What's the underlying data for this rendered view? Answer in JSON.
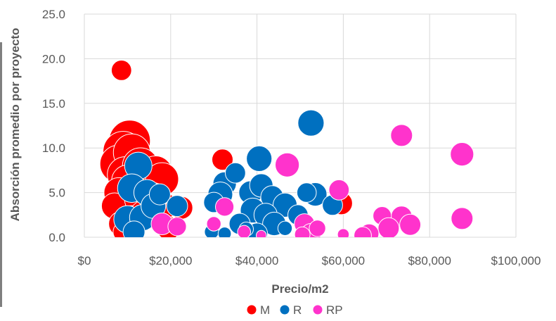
{
  "chart_data": {
    "type": "bubble",
    "xlabel": "Precio/m2",
    "ylabel": "Absorción promedio por proyecto",
    "xlim": [
      0,
      100000
    ],
    "ylim": [
      0,
      25
    ],
    "x_ticks": [
      {
        "value": 0,
        "label": "$0"
      },
      {
        "value": 20000,
        "label": "$20,000"
      },
      {
        "value": 40000,
        "label": "$40,000"
      },
      {
        "value": 60000,
        "label": "$60,000"
      },
      {
        "value": 80000,
        "label": "$80,000"
      },
      {
        "value": 100000,
        "label": "$100,000"
      }
    ],
    "y_ticks": [
      {
        "value": 0,
        "label": "0.0"
      },
      {
        "value": 5,
        "label": "5.0"
      },
      {
        "value": 10,
        "label": "10.0"
      },
      {
        "value": 15,
        "label": "15.0"
      },
      {
        "value": 20,
        "label": "20.0"
      },
      {
        "value": 25,
        "label": "25.0"
      }
    ],
    "grid": true,
    "legend_position": "bottom",
    "series": [
      {
        "name": "M",
        "color": "#ff0000",
        "points": [
          {
            "x": 8600,
            "y": 18.7,
            "size": 1.2
          },
          {
            "x": 10500,
            "y": 10.8,
            "size": 5.0
          },
          {
            "x": 9000,
            "y": 9.6,
            "size": 4.8
          },
          {
            "x": 8000,
            "y": 8.2,
            "size": 4.2
          },
          {
            "x": 11000,
            "y": 9.5,
            "size": 4.0
          },
          {
            "x": 9500,
            "y": 7.0,
            "size": 3.8
          },
          {
            "x": 13000,
            "y": 8.0,
            "size": 3.8
          },
          {
            "x": 15000,
            "y": 6.2,
            "size": 3.5
          },
          {
            "x": 16500,
            "y": 7.2,
            "size": 3.4
          },
          {
            "x": 18000,
            "y": 6.5,
            "size": 3.2
          },
          {
            "x": 10000,
            "y": 6.3,
            "size": 3.0
          },
          {
            "x": 8000,
            "y": 5.0,
            "size": 2.6
          },
          {
            "x": 7000,
            "y": 3.5,
            "size": 2.0
          },
          {
            "x": 12500,
            "y": 4.2,
            "size": 2.2
          },
          {
            "x": 18500,
            "y": 3.5,
            "size": 2.0
          },
          {
            "x": 16000,
            "y": 4.5,
            "size": 2.4
          },
          {
            "x": 8500,
            "y": 1.5,
            "size": 1.8
          },
          {
            "x": 11000,
            "y": 2.0,
            "size": 2.2
          },
          {
            "x": 14000,
            "y": 2.5,
            "size": 2.6
          },
          {
            "x": 9000,
            "y": 0.6,
            "size": 1.2
          },
          {
            "x": 19500,
            "y": 1.0,
            "size": 1.6
          },
          {
            "x": 22500,
            "y": 3.3,
            "size": 1.5
          },
          {
            "x": 32000,
            "y": 8.7,
            "size": 1.3
          },
          {
            "x": 59500,
            "y": 3.8,
            "size": 1.5
          }
        ]
      },
      {
        "name": "R",
        "color": "#0070c0",
        "points": [
          {
            "x": 12500,
            "y": 8.0,
            "size": 2.2
          },
          {
            "x": 11000,
            "y": 5.5,
            "size": 2.4
          },
          {
            "x": 14500,
            "y": 5.0,
            "size": 2.0
          },
          {
            "x": 10000,
            "y": 2.0,
            "size": 2.2
          },
          {
            "x": 13500,
            "y": 2.2,
            "size": 2.0
          },
          {
            "x": 16000,
            "y": 3.5,
            "size": 1.8
          },
          {
            "x": 11500,
            "y": 0.6,
            "size": 1.4
          },
          {
            "x": 17500,
            "y": 4.8,
            "size": 1.3
          },
          {
            "x": 21500,
            "y": 3.5,
            "size": 1.3
          },
          {
            "x": 52500,
            "y": 12.8,
            "size": 2.0
          },
          {
            "x": 40500,
            "y": 8.8,
            "size": 1.9
          },
          {
            "x": 32500,
            "y": 6.0,
            "size": 1.6
          },
          {
            "x": 35000,
            "y": 7.2,
            "size": 1.2
          },
          {
            "x": 31500,
            "y": 4.8,
            "size": 1.8
          },
          {
            "x": 38500,
            "y": 5.0,
            "size": 1.6
          },
          {
            "x": 41000,
            "y": 5.8,
            "size": 1.6
          },
          {
            "x": 43500,
            "y": 4.5,
            "size": 1.5
          },
          {
            "x": 46500,
            "y": 3.6,
            "size": 1.7
          },
          {
            "x": 39000,
            "y": 3.0,
            "size": 1.8
          },
          {
            "x": 42000,
            "y": 2.5,
            "size": 1.6
          },
          {
            "x": 36000,
            "y": 1.5,
            "size": 1.3
          },
          {
            "x": 44000,
            "y": 1.5,
            "size": 1.6
          },
          {
            "x": 40000,
            "y": 0.4,
            "size": 1.3
          },
          {
            "x": 30000,
            "y": 3.9,
            "size": 1.2
          },
          {
            "x": 53500,
            "y": 4.8,
            "size": 1.6
          },
          {
            "x": 57500,
            "y": 3.6,
            "size": 1.2
          },
          {
            "x": 51500,
            "y": 5.0,
            "size": 1.1
          },
          {
            "x": 49500,
            "y": 2.5,
            "size": 1.2
          },
          {
            "x": 29500,
            "y": 0.6,
            "size": 0.6
          },
          {
            "x": 32500,
            "y": 0.4,
            "size": 0.5
          },
          {
            "x": 46500,
            "y": 1.0,
            "size": 0.6
          },
          {
            "x": 51500,
            "y": 0.6,
            "size": 0.7
          },
          {
            "x": 37500,
            "y": 0.9,
            "size": 0.6
          }
        ]
      },
      {
        "name": "RP",
        "color": "#ff33cc",
        "points": [
          {
            "x": 73500,
            "y": 11.4,
            "size": 1.4
          },
          {
            "x": 87500,
            "y": 9.3,
            "size": 1.6
          },
          {
            "x": 47000,
            "y": 8.1,
            "size": 1.7
          },
          {
            "x": 59000,
            "y": 5.3,
            "size": 1.2
          },
          {
            "x": 32500,
            "y": 3.4,
            "size": 1.0
          },
          {
            "x": 87500,
            "y": 2.1,
            "size": 1.4
          },
          {
            "x": 73500,
            "y": 2.3,
            "size": 1.3
          },
          {
            "x": 69000,
            "y": 2.4,
            "size": 1.0
          },
          {
            "x": 75500,
            "y": 1.4,
            "size": 1.3
          },
          {
            "x": 70500,
            "y": 1.0,
            "size": 1.3
          },
          {
            "x": 66000,
            "y": 0.4,
            "size": 1.1
          },
          {
            "x": 64500,
            "y": 0.2,
            "size": 0.9
          },
          {
            "x": 18000,
            "y": 1.5,
            "size": 1.4
          },
          {
            "x": 21500,
            "y": 1.2,
            "size": 1.0
          },
          {
            "x": 30000,
            "y": 1.5,
            "size": 0.6
          },
          {
            "x": 51000,
            "y": 1.5,
            "size": 1.2
          },
          {
            "x": 52500,
            "y": 0.4,
            "size": 1.2
          },
          {
            "x": 54000,
            "y": 1.0,
            "size": 0.8
          },
          {
            "x": 50500,
            "y": 0.3,
            "size": 0.7
          },
          {
            "x": 37000,
            "y": 0.6,
            "size": 0.5
          },
          {
            "x": 60000,
            "y": 0.3,
            "size": 0.4
          },
          {
            "x": 41000,
            "y": 0.2,
            "size": 0.3
          }
        ]
      }
    ]
  }
}
